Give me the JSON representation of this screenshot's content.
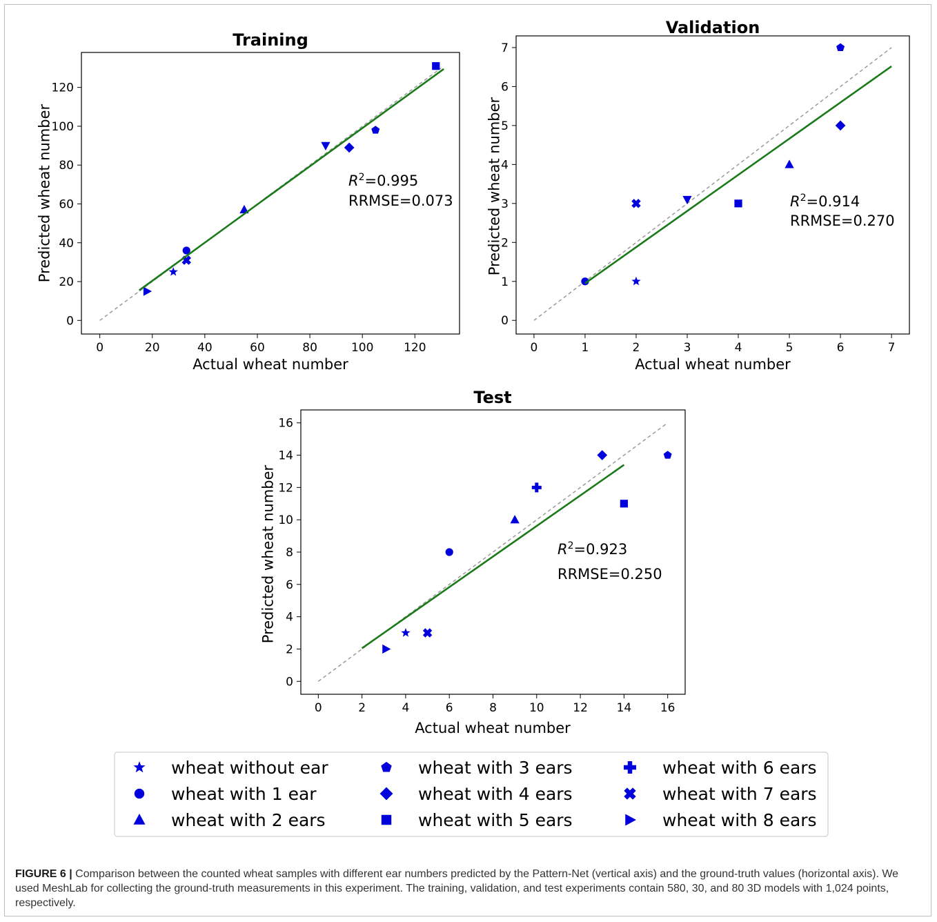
{
  "colors": {
    "marker": "#0000dd",
    "fit": "#1a7a1a",
    "identity": "#9a9a9a",
    "axis": "#000000"
  },
  "chart_data": [
    {
      "type": "scatter",
      "title": "Training",
      "xlabel": "Actual wheat number",
      "ylabel": "Predicted wheat number",
      "xlim": [
        -7,
        137
      ],
      "ylim": [
        -7,
        138
      ],
      "xticks": [
        0,
        20,
        40,
        60,
        80,
        100,
        120
      ],
      "yticks": [
        0,
        20,
        40,
        60,
        80,
        100,
        120
      ],
      "points": [
        {
          "series": "wheat without ear",
          "marker": "star",
          "x": 28,
          "y": 25
        },
        {
          "series": "wheat with 1 ear",
          "marker": "circle",
          "x": 33,
          "y": 36
        },
        {
          "series": "wheat with 2 ears",
          "marker": "triangle-up",
          "x": 55,
          "y": 57
        },
        {
          "series": "wheat with 3 ears",
          "marker": "pentagon",
          "x": 105,
          "y": 98
        },
        {
          "series": "wheat with 4 ears",
          "marker": "diamond",
          "x": 95,
          "y": 89
        },
        {
          "series": "wheat with 5 ears",
          "marker": "square",
          "x": 128,
          "y": 131
        },
        {
          "series": "wheat with 7 ears",
          "marker": "x-filled",
          "x": 33,
          "y": 31
        },
        {
          "series": "wheat with 8 ears",
          "marker": "triangle-right",
          "x": 18,
          "y": 15
        },
        {
          "series": "triangle-down",
          "marker": "triangle-down",
          "x": 86,
          "y": 90
        }
      ],
      "fit_line": {
        "x": [
          15,
          131
        ],
        "y": [
          15.5,
          129.5
        ]
      },
      "identity_line": {
        "x": [
          0,
          130
        ],
        "y": [
          0,
          130
        ]
      },
      "annotation": {
        "r2_label": "R",
        "r2_value": "=0.995",
        "rrmse": "RRMSE=0.073"
      }
    },
    {
      "type": "scatter",
      "title": "Validation",
      "xlabel": "Actual wheat number",
      "ylabel": "Predicted wheat number",
      "xlim": [
        -0.35,
        7.35
      ],
      "ylim": [
        -0.35,
        7.3
      ],
      "xticks": [
        0,
        1,
        2,
        3,
        4,
        5,
        6,
        7
      ],
      "yticks": [
        0,
        1,
        2,
        3,
        4,
        5,
        6,
        7
      ],
      "points": [
        {
          "series": "wheat without ear",
          "marker": "star",
          "x": 2,
          "y": 1
        },
        {
          "series": "wheat with 1 ear",
          "marker": "circle",
          "x": 1,
          "y": 1
        },
        {
          "series": "wheat with 2 ears",
          "marker": "triangle-up",
          "x": 5,
          "y": 4
        },
        {
          "series": "wheat with 3 ears",
          "marker": "pentagon",
          "x": 6,
          "y": 7
        },
        {
          "series": "wheat with 4 ears",
          "marker": "diamond",
          "x": 6,
          "y": 5
        },
        {
          "series": "wheat with 5 ears",
          "marker": "square",
          "x": 4,
          "y": 3
        },
        {
          "series": "wheat with 7 ears",
          "marker": "x-filled",
          "x": 2,
          "y": 3
        },
        {
          "series": "triangle-down",
          "marker": "triangle-down",
          "x": 3,
          "y": 3.1
        }
      ],
      "fit_line": {
        "x": [
          1,
          7
        ],
        "y": [
          0.95,
          6.52
        ]
      },
      "identity_line": {
        "x": [
          0,
          7
        ],
        "y": [
          0,
          7
        ]
      },
      "annotation": {
        "r2_label": "R",
        "r2_value": "=0.914",
        "rrmse": "RRMSE=0.270"
      }
    },
    {
      "type": "scatter",
      "title": "Test",
      "xlabel": "Actual wheat number",
      "ylabel": "Predicted wheat number",
      "xlim": [
        -0.8,
        16.8
      ],
      "ylim": [
        -0.8,
        16.8
      ],
      "xticks": [
        0,
        2,
        4,
        6,
        8,
        10,
        12,
        14,
        16
      ],
      "yticks": [
        0,
        2,
        4,
        6,
        8,
        10,
        12,
        14,
        16
      ],
      "points": [
        {
          "series": "wheat without ear",
          "marker": "star",
          "x": 4,
          "y": 3
        },
        {
          "series": "wheat with 1 ear",
          "marker": "circle",
          "x": 6,
          "y": 8
        },
        {
          "series": "wheat with 2 ears",
          "marker": "triangle-up",
          "x": 9,
          "y": 10
        },
        {
          "series": "wheat with 3 ears",
          "marker": "pentagon",
          "x": 16,
          "y": 14
        },
        {
          "series": "wheat with 4 ears",
          "marker": "diamond",
          "x": 13,
          "y": 14
        },
        {
          "series": "wheat with 5 ears",
          "marker": "square",
          "x": 14,
          "y": 11
        },
        {
          "series": "wheat with 6 ears",
          "marker": "plus-filled",
          "x": 10,
          "y": 12
        },
        {
          "series": "wheat with 7 ears",
          "marker": "x-filled",
          "x": 5,
          "y": 3
        },
        {
          "series": "wheat with 8 ears",
          "marker": "triangle-right",
          "x": 3.1,
          "y": 2
        }
      ],
      "fit_line": {
        "x": [
          2,
          14
        ],
        "y": [
          2.05,
          13.4
        ]
      },
      "identity_line": {
        "x": [
          0,
          16
        ],
        "y": [
          0,
          16
        ]
      },
      "annotation": {
        "r2_label": "R",
        "r2_value": "=0.923",
        "rrmse": "RRMSE=0.250"
      }
    }
  ],
  "legend": {
    "entries": [
      {
        "label": "wheat without ear",
        "marker": "star"
      },
      {
        "label": "wheat with 1 ear",
        "marker": "circle"
      },
      {
        "label": "wheat with 2 ears",
        "marker": "triangle-up"
      },
      {
        "label": "wheat with 3 ears",
        "marker": "pentagon"
      },
      {
        "label": "wheat with 4 ears",
        "marker": "diamond"
      },
      {
        "label": "wheat with 5 ears",
        "marker": "square"
      },
      {
        "label": "wheat with 6 ears",
        "marker": "plus-filled"
      },
      {
        "label": "wheat with 7 ears",
        "marker": "x-filled"
      },
      {
        "label": "wheat with 8 ears",
        "marker": "triangle-right"
      }
    ]
  },
  "caption": {
    "label": "FIGURE 6 |",
    "text": " Comparison between the counted wheat samples with different ear numbers predicted by the Pattern-Net (vertical axis) and the ground-truth values (horizontal axis). We used MeshLab for collecting the ground-truth measurements in this experiment. The training, validation, and test experiments contain 580, 30, and 80 3D models with 1,024 points, respectively."
  }
}
